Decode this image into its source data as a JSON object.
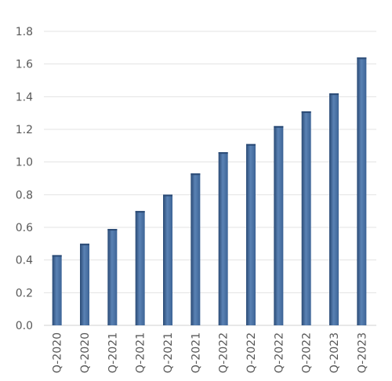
{
  "chart_data": {
    "type": "bar",
    "categories": [
      "Q-2020",
      "Q-2020",
      "Q-2021",
      "Q-2021",
      "Q-2021",
      "Q-2021",
      "Q-2022",
      "Q-2022",
      "Q-2022",
      "Q-2022",
      "Q-2023",
      "Q-2023"
    ],
    "values": [
      0.43,
      0.5,
      0.59,
      0.7,
      0.8,
      0.93,
      1.06,
      1.11,
      1.22,
      1.31,
      1.42,
      1.64
    ],
    "ylim": [
      0,
      1.8
    ],
    "yticks": [
      "0.0",
      "0.2",
      "0.4",
      "0.6",
      "0.8",
      "1.0",
      "1.2",
      "1.4",
      "1.6",
      "1.8"
    ],
    "grid": true,
    "bar_color": "#3d6496",
    "bar_color_light": "#5a82b4",
    "bar_color_dark": "#2a4a75"
  }
}
